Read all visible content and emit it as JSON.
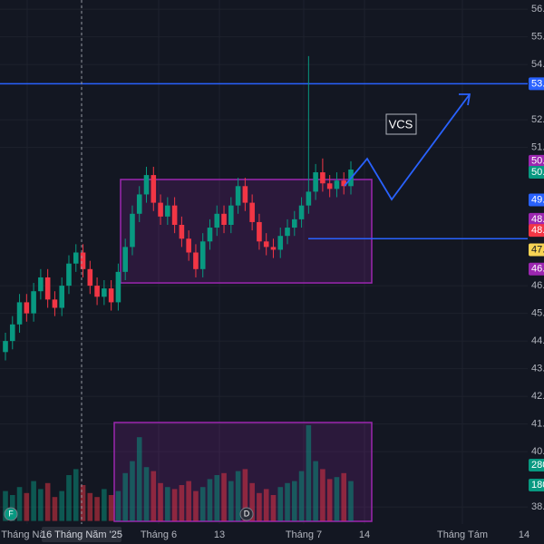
{
  "chart_data": {
    "type": "candlestick",
    "open": [
      43.6,
      44.0,
      44.6,
      45.4,
      45.0,
      45.8,
      46.3,
      45.5,
      45.2,
      46.0,
      46.8,
      47.2,
      46.6,
      46.0,
      45.6,
      45.9,
      45.4,
      46.5,
      47.4,
      48.6,
      49.3,
      50.0,
      49.0,
      48.5,
      48.9,
      48.2,
      47.7,
      47.2,
      46.6,
      47.6,
      48.1,
      48.6,
      48.2,
      48.9,
      49.6,
      49.0,
      48.3,
      47.6,
      47.4,
      47.3,
      47.8,
      48.1,
      48.4,
      48.9,
      49.4,
      50.1,
      49.7,
      49.5,
      49.8,
      49.6
    ],
    "high": [
      44.3,
      44.9,
      45.7,
      45.7,
      46.1,
      46.6,
      46.6,
      45.8,
      46.3,
      47.1,
      47.5,
      47.5,
      46.9,
      46.3,
      46.2,
      46.2,
      46.8,
      47.7,
      48.9,
      49.6,
      50.3,
      50.3,
      49.3,
      49.2,
      49.2,
      48.5,
      48.0,
      47.5,
      47.9,
      48.4,
      48.9,
      48.9,
      49.2,
      49.9,
      49.9,
      49.3,
      48.6,
      47.9,
      47.7,
      48.1,
      48.4,
      48.7,
      49.2,
      54.3,
      50.4,
      50.6,
      50.0,
      50.1,
      50.1,
      50.5
    ],
    "low": [
      43.3,
      43.7,
      44.3,
      44.7,
      44.7,
      45.5,
      45.2,
      44.9,
      44.9,
      45.7,
      46.5,
      46.3,
      45.7,
      45.3,
      45.3,
      45.1,
      45.1,
      46.2,
      47.1,
      48.3,
      49.0,
      48.7,
      48.2,
      48.2,
      47.9,
      47.4,
      46.9,
      46.3,
      46.3,
      47.3,
      47.8,
      47.9,
      47.9,
      48.6,
      48.7,
      48.0,
      47.3,
      47.1,
      47.0,
      47.0,
      47.5,
      47.8,
      48.1,
      48.6,
      49.1,
      49.4,
      49.2,
      49.2,
      49.3,
      49.3
    ],
    "close": [
      44.0,
      44.6,
      45.4,
      45.0,
      45.8,
      46.3,
      45.5,
      45.2,
      46.0,
      46.8,
      47.2,
      46.6,
      46.0,
      45.6,
      45.9,
      45.4,
      46.5,
      47.4,
      48.6,
      49.3,
      50.0,
      49.0,
      48.5,
      48.9,
      48.2,
      47.7,
      47.2,
      46.6,
      47.6,
      48.1,
      48.6,
      48.2,
      48.9,
      49.6,
      49.0,
      48.3,
      47.6,
      47.4,
      47.3,
      47.8,
      48.1,
      48.4,
      48.9,
      49.4,
      50.1,
      49.7,
      49.5,
      49.8,
      49.6,
      50.2
    ],
    "volume": [
      150,
      130,
      170,
      140,
      200,
      160,
      190,
      120,
      150,
      230,
      260,
      180,
      140,
      120,
      160,
      130,
      150,
      240,
      300,
      420,
      270,
      250,
      190,
      170,
      160,
      180,
      200,
      150,
      170,
      210,
      230,
      240,
      200,
      250,
      260,
      190,
      140,
      160,
      130,
      170,
      190,
      200,
      250,
      480,
      300,
      260,
      210,
      220,
      240,
      200
    ],
    "up_color": "#089981",
    "down_color": "#f23645",
    "ylim": [
      37.48,
      56.33
    ],
    "yticks": [
      {
        "value": 56,
        "label": "56."
      },
      {
        "value": 55,
        "label": "55.0"
      },
      {
        "value": 54,
        "label": "54.0"
      },
      {
        "value": 52,
        "label": "52.0"
      },
      {
        "value": 51,
        "label": "51."
      },
      {
        "value": 46,
        "label": "46."
      },
      {
        "value": 45,
        "label": "45."
      },
      {
        "value": 44,
        "label": "44."
      },
      {
        "value": 43,
        "label": "43."
      },
      {
        "value": 42,
        "label": "42."
      },
      {
        "value": 41,
        "label": "41."
      },
      {
        "value": 40,
        "label": "40."
      },
      {
        "value": 38,
        "label": "38."
      }
    ],
    "price_tags": [
      {
        "value": 53.3,
        "label": "53.",
        "color": "#2962ff"
      },
      {
        "value": 50.5,
        "label": "50.",
        "color": "#9c27b0"
      },
      {
        "value": 50.1,
        "label": "50.",
        "color": "#089981"
      },
      {
        "value": 49.1,
        "label": "49.",
        "color": "#2962ff"
      },
      {
        "value": 48.4,
        "label": "48.",
        "color": "#9c27b0"
      },
      {
        "value": 48.0,
        "label": "48.",
        "color": "#f23645"
      },
      {
        "value": 47.3,
        "label": "47.",
        "color": "#f7d354"
      },
      {
        "value": 46.6,
        "label": "46.",
        "color": "#9c27b0"
      }
    ],
    "volume_tags": [
      {
        "value": 280,
        "label": "280",
        "color": "#089981"
      },
      {
        "value": 180,
        "label": "180",
        "color": "#089981"
      }
    ],
    "hlines": [
      {
        "value": 53.3,
        "color": "#2962ff"
      },
      {
        "value": 47.7,
        "color": "#2962ff"
      }
    ],
    "box": {
      "top": 49.84,
      "bottom": 46.1,
      "color": "#9c27b0"
    },
    "annotation": "VCS",
    "x_labels": [
      "Tháng Năm",
      "16 Tháng Năm '25",
      "Tháng 6",
      "13",
      "Tháng 7",
      "14",
      "Tháng Tám",
      "14"
    ],
    "badges": [
      "F",
      "D"
    ]
  }
}
